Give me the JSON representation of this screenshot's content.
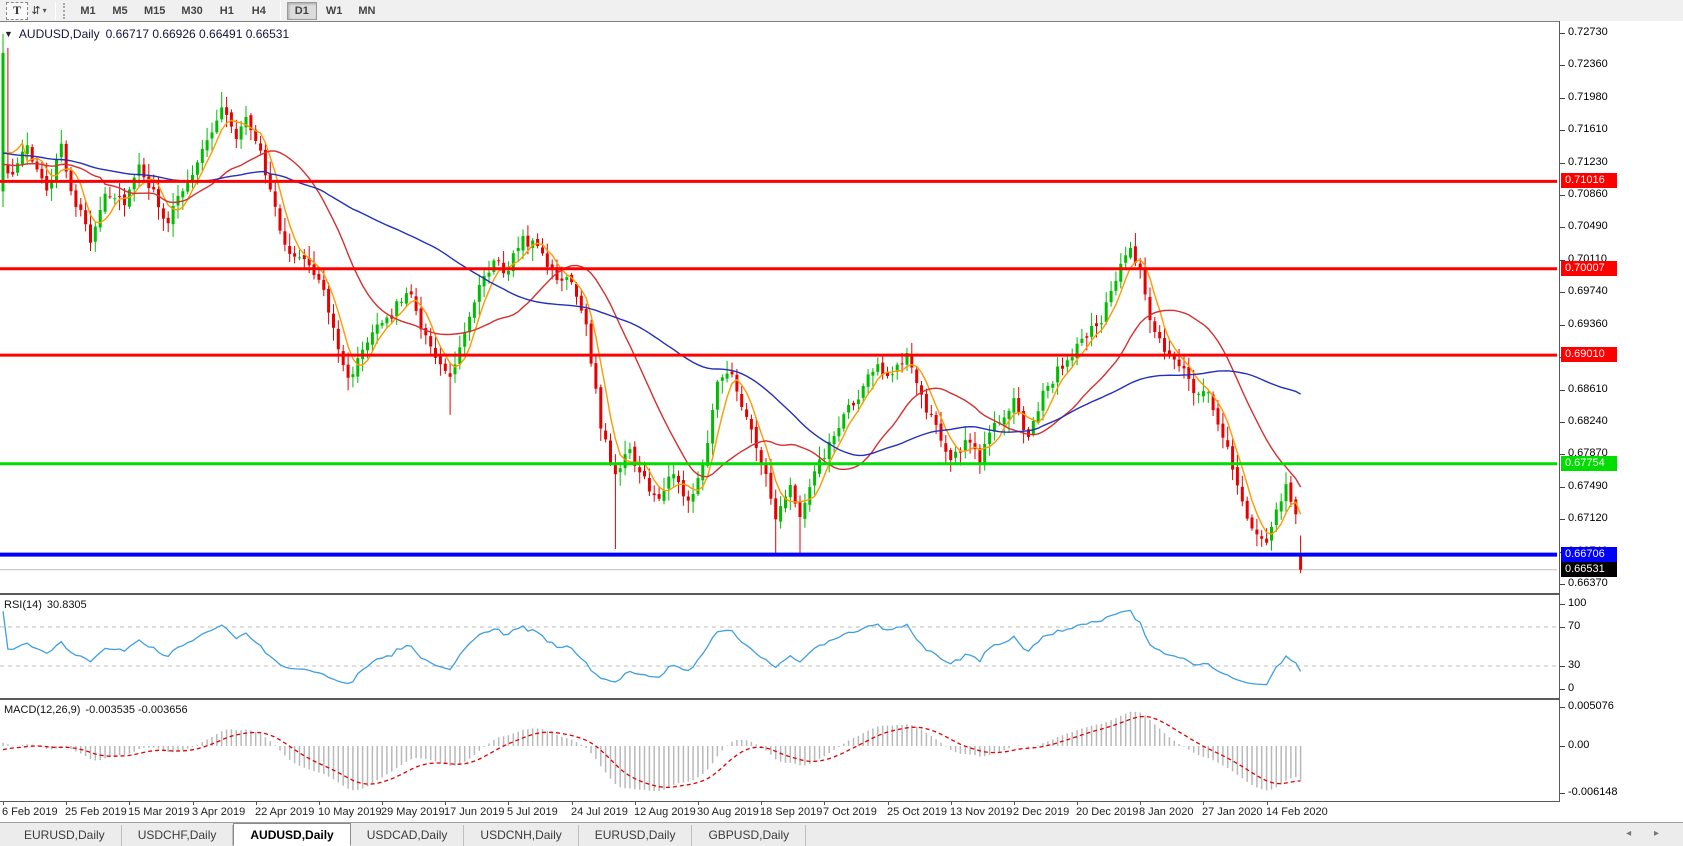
{
  "toolbar": {
    "text_tool": "T",
    "dropdown_icon": "⇵",
    "dropdown_caret": "▾",
    "timeframes": [
      "M1",
      "M5",
      "M15",
      "M30",
      "H1",
      "H4",
      "D1",
      "W1",
      "MN"
    ],
    "active_timeframe": "D1"
  },
  "chart_data": {
    "type": "candlestick",
    "symbol": "AUDUSD",
    "timeframe": "Daily",
    "title": {
      "symbol": "AUDUSD,Daily",
      "ohlc": "0.66717 0.66926 0.66491 0.66531",
      "collapse_icon": "▼"
    },
    "current_bar": {
      "open": 0.66717,
      "high": 0.66926,
      "low": 0.66491,
      "close": 0.66531
    },
    "bars_total": 268,
    "anchors": [
      [
        0,
        0.7105
      ],
      [
        5,
        0.7135
      ],
      [
        9,
        0.7085
      ],
      [
        12,
        0.715
      ],
      [
        14,
        0.7095
      ],
      [
        18,
        0.7035
      ],
      [
        21,
        0.7095
      ],
      [
        25,
        0.708
      ],
      [
        28,
        0.7112
      ],
      [
        31,
        0.7085
      ],
      [
        34,
        0.7052
      ],
      [
        38,
        0.7105
      ],
      [
        41,
        0.714
      ],
      [
        45,
        0.7188
      ],
      [
        48,
        0.7155
      ],
      [
        50,
        0.7172
      ],
      [
        53,
        0.714
      ],
      [
        56,
        0.7068
      ],
      [
        59,
        0.7012
      ],
      [
        62,
        0.7018
      ],
      [
        65,
        0.6992
      ],
      [
        68,
        0.6928
      ],
      [
        71,
        0.6882
      ],
      [
        74,
        0.6902
      ],
      [
        78,
        0.6932
      ],
      [
        81,
        0.6958
      ],
      [
        84,
        0.6975
      ],
      [
        86,
        0.6938
      ],
      [
        89,
        0.6905
      ],
      [
        92,
        0.6868
      ],
      [
        95,
        0.6928
      ],
      [
        98,
        0.6972
      ],
      [
        101,
        0.7008
      ],
      [
        104,
        0.6995
      ],
      [
        107,
        0.7038
      ],
      [
        111,
        0.7022
      ],
      [
        114,
        0.6985
      ],
      [
        117,
        0.699
      ],
      [
        120,
        0.6942
      ],
      [
        123,
        0.682
      ],
      [
        126,
        0.6762
      ],
      [
        129,
        0.6788
      ],
      [
        132,
        0.6755
      ],
      [
        135,
        0.6732
      ],
      [
        138,
        0.6765
      ],
      [
        141,
        0.6732
      ],
      [
        144,
        0.6775
      ],
      [
        147,
        0.6868
      ],
      [
        150,
        0.6882
      ],
      [
        154,
        0.682
      ],
      [
        157,
        0.676
      ],
      [
        159,
        0.6705
      ],
      [
        162,
        0.6745
      ],
      [
        164,
        0.6715
      ],
      [
        167,
        0.6758
      ],
      [
        170,
        0.6795
      ],
      [
        173,
        0.6825
      ],
      [
        177,
        0.6858
      ],
      [
        180,
        0.6892
      ],
      [
        183,
        0.6875
      ],
      [
        186,
        0.6895
      ],
      [
        189,
        0.6855
      ],
      [
        192,
        0.6815
      ],
      [
        195,
        0.6785
      ],
      [
        198,
        0.68
      ],
      [
        201,
        0.6775
      ],
      [
        204,
        0.6825
      ],
      [
        208,
        0.6845
      ],
      [
        211,
        0.6808
      ],
      [
        214,
        0.6855
      ],
      [
        217,
        0.6885
      ],
      [
        220,
        0.69
      ],
      [
        223,
        0.6925
      ],
      [
        226,
        0.6945
      ],
      [
        229,
        0.6988
      ],
      [
        232,
        0.7022
      ],
      [
        234,
        0.6995
      ],
      [
        236,
        0.6935
      ],
      [
        239,
        0.6905
      ],
      [
        242,
        0.6895
      ],
      [
        245,
        0.6865
      ],
      [
        248,
        0.685
      ],
      [
        251,
        0.681
      ],
      [
        254,
        0.6755
      ],
      [
        257,
        0.6705
      ],
      [
        260,
        0.669
      ],
      [
        262,
        0.673
      ],
      [
        264,
        0.6748
      ],
      [
        266,
        0.6718
      ],
      [
        267,
        0.66531
      ]
    ],
    "special_bars": {
      "0": {
        "o": 0.709,
        "h": 0.7272,
        "l": 0.7072,
        "c": 0.725
      },
      "1": {
        "o": 0.712
      },
      "45": {
        "h": 0.7205
      },
      "92": {
        "l": 0.6832
      },
      "107": {
        "h": 0.7046
      },
      "126": {
        "l": 0.6677
      },
      "159": {
        "l": 0.6671
      },
      "164": {
        "l": 0.6671
      },
      "232": {
        "h": 0.7032
      },
      "267": {
        "o": 0.66717,
        "h": 0.66926,
        "l": 0.66491,
        "c": 0.66531
      }
    },
    "moving_averages": [
      {
        "period": 5,
        "color": "#ff9900"
      },
      {
        "period": 21,
        "color": "#d43030"
      },
      {
        "period": 55,
        "color": "#2430bb"
      }
    ],
    "price_axis": {
      "ticks": [
        "0.72730",
        "0.72360",
        "0.71980",
        "0.71610",
        "0.71230",
        "0.70860",
        "0.70490",
        "0.70110",
        "0.69740",
        "0.69360",
        "0.68990",
        "0.68610",
        "0.68240",
        "0.67870",
        "0.67490",
        "0.67120",
        "0.66740",
        "0.66370"
      ]
    },
    "hlines": [
      {
        "price": 0.71016,
        "label": "0.71016",
        "color": "#fe0000",
        "width": 3
      },
      {
        "price": 0.70007,
        "label": "0.70007",
        "color": "#fe0000",
        "width": 3
      },
      {
        "price": 0.6901,
        "label": "0.69010",
        "color": "#fe0000",
        "width": 3
      },
      {
        "price": 0.67754,
        "label": "0.67754",
        "color": "#00dd00",
        "width": 3
      },
      {
        "price": 0.66706,
        "label": "0.66706",
        "color": "#0000fe",
        "width": 4
      }
    ],
    "current_price": {
      "value": 0.66531,
      "label": "0.66531",
      "chip_bg": "#000000"
    },
    "rsi": {
      "name": "RSI(14)",
      "value": "30.8305",
      "period": 14,
      "levels": [
        70,
        30
      ],
      "axis": [
        [
          "100",
          100
        ],
        [
          "70",
          70
        ],
        [
          "30",
          30
        ],
        [
          "0",
          0
        ]
      ]
    },
    "macd": {
      "name": "MACD(12,26,9)",
      "values": "-0.003535 -0.003656",
      "fast": 12,
      "slow": 26,
      "signal": 9,
      "axis": [
        [
          "0.005076",
          0.005076
        ],
        [
          "0.00",
          0
        ],
        [
          "-0.006148",
          -0.006148
        ]
      ]
    },
    "dates": [
      "6 Feb 2019",
      "25 Feb 2019",
      "15 Mar 2019",
      "3 Apr 2019",
      "22 Apr 2019",
      "10 May 2019",
      "29 May 2019",
      "17 Jun 2019",
      "5 Jul 2019",
      "24 Jul 2019",
      "12 Aug 2019",
      "30 Aug 2019",
      "18 Sep 2019",
      "7 Oct 2019",
      "25 Oct 2019",
      "13 Nov 2019",
      "2 Dec 2019",
      "20 Dec 2019",
      "8 Jan 2020",
      "27 Jan 2020",
      "14 Feb 2020"
    ],
    "colors": {
      "bull": "#00bd00",
      "bear": "#e60000",
      "rsi_line": "#3f9fe0",
      "macd_hist": "#b9b9b9",
      "macd_signal": "#e00000",
      "level_dashed": "#bcbcbc",
      "bid_line": "#c0c0c0"
    }
  },
  "tabs": [
    {
      "label": "EURUSD,Daily",
      "active": false
    },
    {
      "label": "USDCHF,Daily",
      "active": false
    },
    {
      "label": "AUDUSD,Daily",
      "active": true
    },
    {
      "label": "USDCAD,Daily",
      "active": false
    },
    {
      "label": "USDCNH,Daily",
      "active": false
    },
    {
      "label": "EURUSD,Daily",
      "active": false
    },
    {
      "label": "GBPUSD,Daily",
      "active": false
    }
  ],
  "tab_scroll": {
    "left_arrow": "◂",
    "right_arrow": "▸"
  }
}
